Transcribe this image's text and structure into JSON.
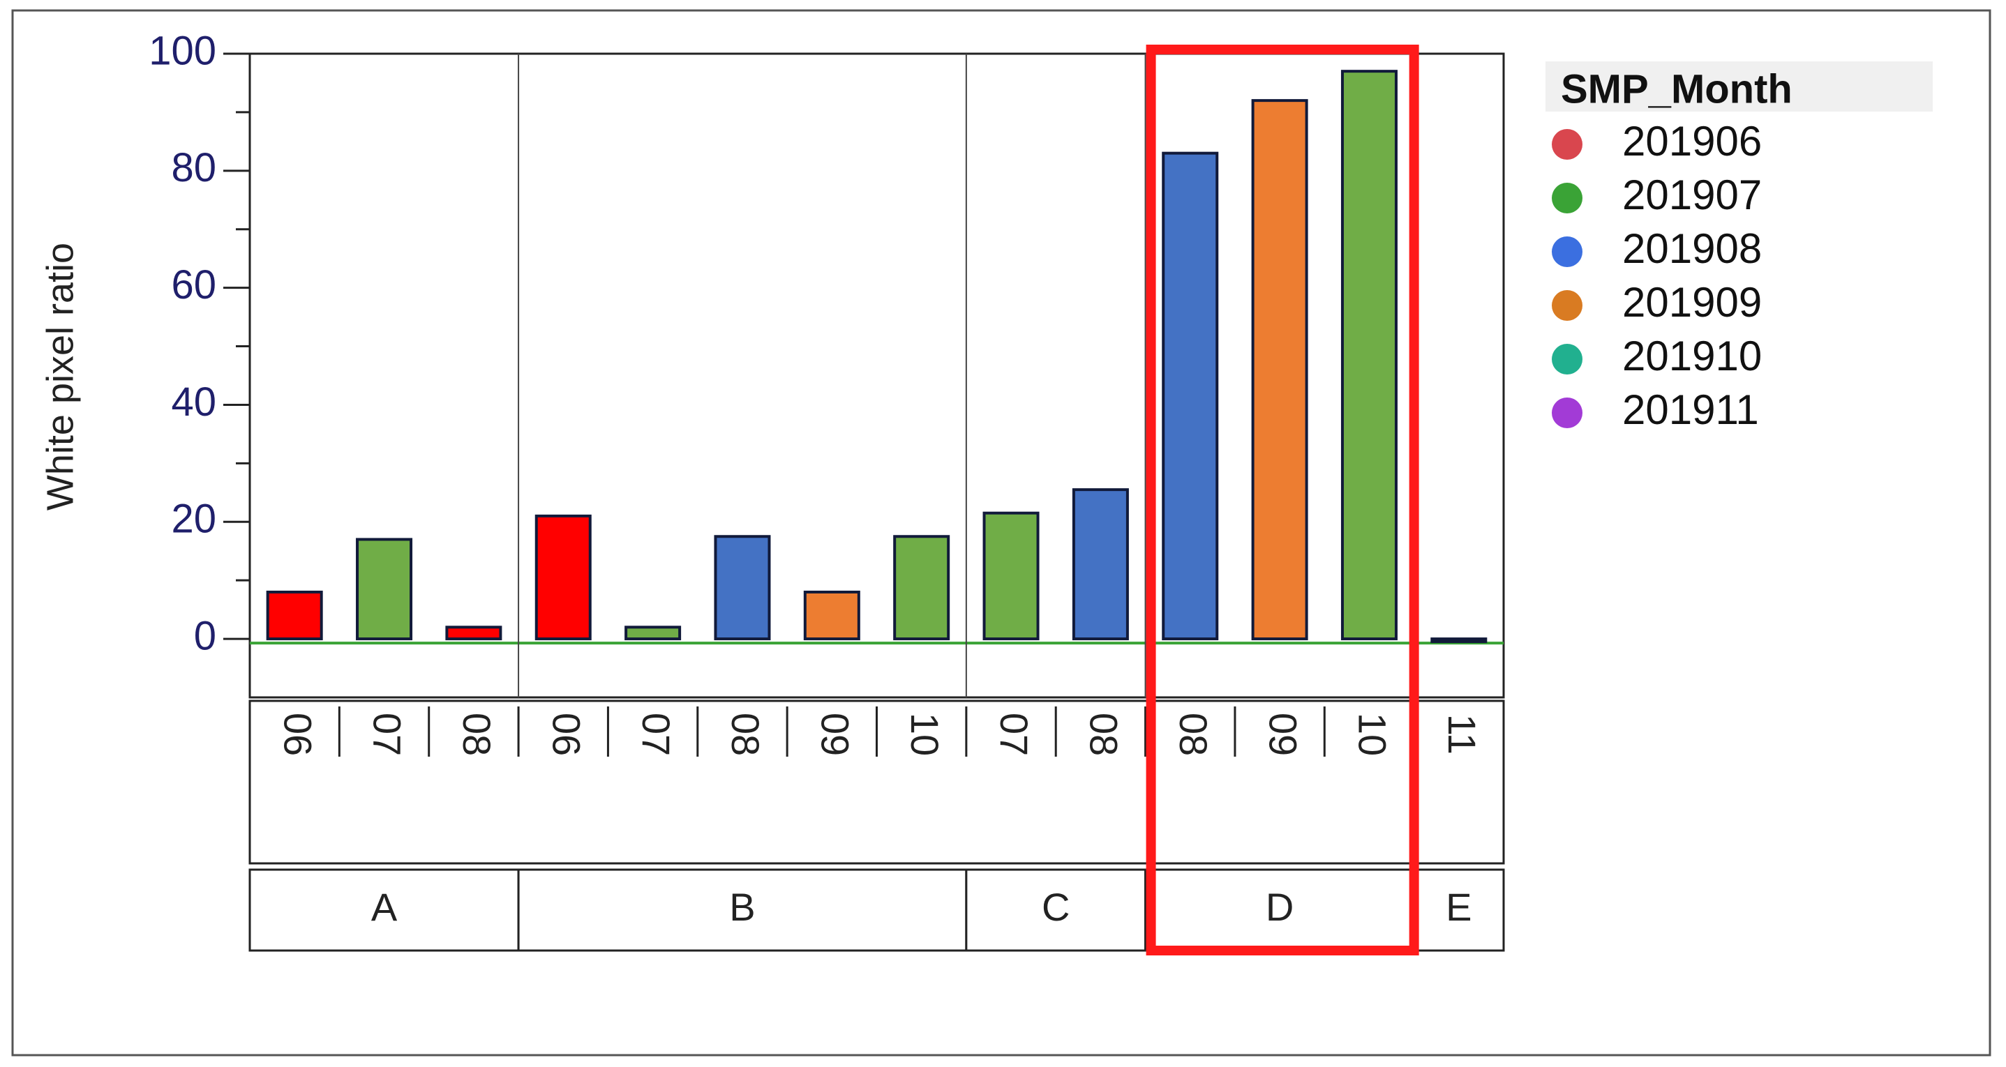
{
  "chart_data": {
    "type": "bar",
    "y_label": "White pixel ratio",
    "ylim": [
      -10,
      100
    ],
    "yticks": [
      0,
      20,
      40,
      60,
      80,
      100
    ],
    "groups": [
      {
        "name": "A",
        "categories": [
          "06",
          "07",
          "08"
        ],
        "values": [
          8,
          17,
          2
        ],
        "colors": [
          "#ff0000",
          "#70ad47",
          "#ff0000"
        ]
      },
      {
        "name": "B",
        "categories": [
          "06",
          "07",
          "08",
          "09",
          "10"
        ],
        "values": [
          21,
          2,
          17.5,
          8,
          17.5
        ],
        "colors": [
          "#ff0000",
          "#70ad47",
          "#4472c4",
          "#ed7d31",
          "#70ad47"
        ]
      },
      {
        "name": "C",
        "categories": [
          "07",
          "08"
        ],
        "values": [
          21.5,
          25.5
        ],
        "colors": [
          "#70ad47",
          "#4472c4"
        ]
      },
      {
        "name": "D",
        "categories": [
          "08",
          "09",
          "10"
        ],
        "values": [
          83,
          92,
          97
        ],
        "colors": [
          "#4472c4",
          "#ed7d31",
          "#70ad47"
        ]
      },
      {
        "name": "E",
        "categories": [
          "11"
        ],
        "values": [
          0
        ],
        "colors": [
          "#ff0000"
        ]
      }
    ],
    "legend": {
      "title": "SMP_Month",
      "items": [
        {
          "name": "201906",
          "color": "#d9464e"
        },
        {
          "name": "201907",
          "color": "#3aa336"
        },
        {
          "name": "201908",
          "color": "#3b6fe0"
        },
        {
          "name": "201909",
          "color": "#d97b22"
        },
        {
          "name": "201910",
          "color": "#21b08f"
        },
        {
          "name": "201911",
          "color": "#a23bd6"
        }
      ]
    }
  }
}
